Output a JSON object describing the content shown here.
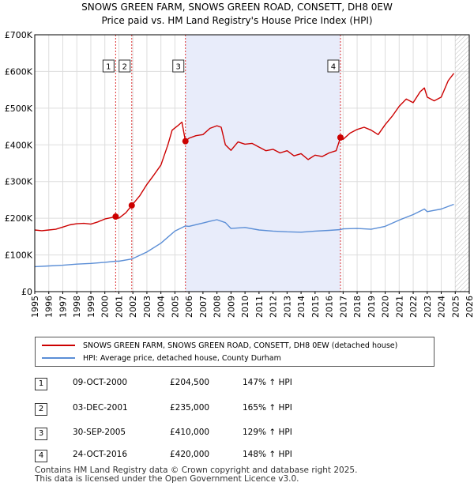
{
  "chart_data": {
    "type": "line",
    "title": "SNOWS GREEN FARM, SNOWS GREEN ROAD, CONSETT, DH8 0EW",
    "subtitle": "Price paid vs. HM Land Registry's House Price Index (HPI)",
    "xlim": [
      1995,
      2026
    ],
    "ylim": [
      0,
      700000
    ],
    "x_ticks": [
      "1995",
      "1996",
      "1997",
      "1998",
      "1999",
      "2000",
      "2001",
      "2002",
      "2003",
      "2004",
      "2005",
      "2006",
      "2007",
      "2008",
      "2009",
      "2010",
      "2011",
      "2012",
      "2013",
      "2014",
      "2015",
      "2016",
      "2017",
      "2018",
      "2019",
      "2020",
      "2021",
      "2022",
      "2023",
      "2024",
      "2025",
      "2026"
    ],
    "y_ticks": [
      {
        "value": 0,
        "label": "£0"
      },
      {
        "value": 100000,
        "label": "£100K"
      },
      {
        "value": 200000,
        "label": "£200K"
      },
      {
        "value": 300000,
        "label": "£300K"
      },
      {
        "value": 400000,
        "label": "£400K"
      },
      {
        "value": 500000,
        "label": "£500K"
      },
      {
        "value": 600000,
        "label": "£600K"
      },
      {
        "value": 700000,
        "label": "£700K"
      }
    ],
    "shaded_region": [
      2005.75,
      2016.81
    ],
    "hatched_from": 2025.0,
    "series": [
      {
        "name": "SNOWS GREEN FARM, SNOWS GREEN ROAD, CONSETT, DH8 0EW (detached house)",
        "color": "#cc0000",
        "x": [
          1995.0,
          1995.5,
          1996.0,
          1996.5,
          1997.0,
          1997.5,
          1998.0,
          1998.5,
          1999.0,
          1999.5,
          2000.0,
          2000.5,
          2000.77,
          2001.0,
          2001.5,
          2001.92,
          2002.5,
          2003.0,
          2003.5,
          2004.0,
          2004.5,
          2004.8,
          2005.2,
          2005.5,
          2005.75,
          2006.0,
          2006.5,
          2007.0,
          2007.5,
          2008.0,
          2008.3,
          2008.6,
          2009.0,
          2009.5,
          2010.0,
          2010.5,
          2011.0,
          2011.5,
          2012.0,
          2012.5,
          2013.0,
          2013.5,
          2014.0,
          2014.5,
          2015.0,
          2015.5,
          2016.0,
          2016.5,
          2016.81,
          2017.0,
          2017.5,
          2018.0,
          2018.5,
          2019.0,
          2019.5,
          2020.0,
          2020.5,
          2021.0,
          2021.5,
          2022.0,
          2022.5,
          2022.8,
          2023.0,
          2023.5,
          2024.0,
          2024.5,
          2024.9
        ],
        "values": [
          168000,
          166000,
          168000,
          170000,
          176000,
          182000,
          185000,
          186000,
          184000,
          190000,
          198000,
          202000,
          204500,
          200000,
          215000,
          235000,
          262000,
          292000,
          318000,
          345000,
          400000,
          440000,
          452000,
          462000,
          410000,
          418000,
          425000,
          428000,
          445000,
          452000,
          448000,
          400000,
          385000,
          408000,
          402000,
          404000,
          394000,
          384000,
          388000,
          378000,
          384000,
          370000,
          376000,
          360000,
          372000,
          368000,
          378000,
          384000,
          420000,
          415000,
          432000,
          442000,
          448000,
          440000,
          428000,
          455000,
          478000,
          505000,
          525000,
          515000,
          545000,
          555000,
          530000,
          520000,
          530000,
          575000,
          595000
        ]
      },
      {
        "name": "HPI: Average price, detached house, County Durham",
        "color": "#5b8ed6",
        "x": [
          1995.0,
          1996.0,
          1997.0,
          1998.0,
          1999.0,
          2000.0,
          2000.77,
          2001.0,
          2001.92,
          2003.0,
          2004.0,
          2005.0,
          2005.75,
          2006.0,
          2007.0,
          2007.5,
          2008.0,
          2008.6,
          2009.0,
          2010.0,
          2011.0,
          2012.0,
          2013.0,
          2014.0,
          2015.0,
          2016.0,
          2016.81,
          2017.0,
          2018.0,
          2019.0,
          2020.0,
          2021.0,
          2022.0,
          2022.8,
          2023.0,
          2024.0,
          2024.9
        ],
        "values": [
          68000,
          70000,
          72000,
          75000,
          77000,
          80000,
          83000,
          83000,
          89000,
          108000,
          132000,
          165000,
          179000,
          178000,
          187000,
          192000,
          196000,
          188000,
          172000,
          175000,
          168000,
          165000,
          163000,
          162000,
          165000,
          167000,
          169000,
          171000,
          172000,
          170000,
          178000,
          195000,
          210000,
          225000,
          218000,
          225000,
          238000
        ]
      }
    ],
    "markers": [
      {
        "label": "1",
        "x": 2000.77,
        "y": 204500
      },
      {
        "label": "2",
        "x": 2001.92,
        "y": 235000
      },
      {
        "label": "3",
        "x": 2005.75,
        "y": 410000
      },
      {
        "label": "4",
        "x": 2016.81,
        "y": 420000
      }
    ]
  },
  "legend": {
    "property": "SNOWS GREEN FARM, SNOWS GREEN ROAD, CONSETT, DH8 0EW (detached house)",
    "hpi": "HPI: Average price, detached house, County Durham",
    "property_color": "#cc0000",
    "hpi_color": "#5b8ed6"
  },
  "sales": [
    {
      "num": "1",
      "date": "09-OCT-2000",
      "price": "£204,500",
      "hpi": "147% ↑ HPI"
    },
    {
      "num": "2",
      "date": "03-DEC-2001",
      "price": "£235,000",
      "hpi": "165% ↑ HPI"
    },
    {
      "num": "3",
      "date": "30-SEP-2005",
      "price": "£410,000",
      "hpi": "129% ↑ HPI"
    },
    {
      "num": "4",
      "date": "24-OCT-2016",
      "price": "£420,000",
      "hpi": "148% ↑ HPI"
    }
  ],
  "footer": {
    "line1": "Contains HM Land Registry data © Crown copyright and database right 2025.",
    "line2": "This data is licensed under the Open Government Licence v3.0."
  }
}
